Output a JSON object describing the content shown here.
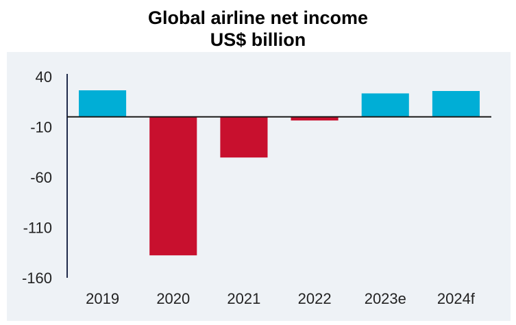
{
  "chart_data": {
    "type": "bar",
    "title": "Global airline net income",
    "subtitle": "US$ billion",
    "xlabel": "",
    "ylabel": "",
    "categories": [
      "2019",
      "2020",
      "2021",
      "2022",
      "2023e",
      "2024f"
    ],
    "values": [
      26.4,
      -137.7,
      -40.4,
      -3.6,
      23.3,
      25.7
    ],
    "ylim": [
      -160,
      40
    ],
    "yticks": [
      40,
      -10,
      -60,
      -110,
      -160
    ],
    "ytick_labels": [
      "40",
      "-10",
      "-60",
      "-110",
      "-160"
    ],
    "grid": false,
    "legend": "none",
    "colors": {
      "positive": "#00AED6",
      "negative": "#C8102E",
      "plot_background": "#EEF2F6",
      "axis": "#1F2A4A"
    }
  }
}
